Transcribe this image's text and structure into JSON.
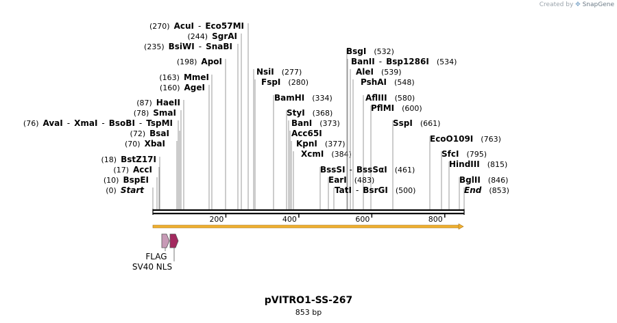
{
  "credit": {
    "prefix": "Created by",
    "brand": "SnapGene"
  },
  "plasmid": {
    "name": "pVITRO1-SS-267",
    "length_label": "853 bp",
    "length_bp": 853
  },
  "axis": {
    "ticks": [
      200,
      400,
      600,
      800
    ],
    "colors": {
      "backbone": "#000000",
      "orf": "#f0b030",
      "orf_stroke": "#a8741a"
    }
  },
  "features": [
    {
      "name": "FLAG",
      "color": "#c79ab6"
    },
    {
      "name": "SV40 NLS",
      "color": "#a3295f"
    }
  ],
  "sites": [
    {
      "key": "AcuI",
      "line": [
        {
          "t": "(270)",
          "s": "paren"
        },
        {
          "t": "AcuI",
          "s": "enz"
        },
        {
          "t": "-",
          "s": "sep"
        },
        {
          "t": "Eco57MI",
          "s": "enz"
        }
      ]
    },
    {
      "key": "SgrAI",
      "line": [
        {
          "t": "(244)",
          "s": "paren"
        },
        {
          "t": "SgrAI",
          "s": "enz"
        }
      ]
    },
    {
      "key": "BsiWI",
      "line": [
        {
          "t": "(235)",
          "s": "paren"
        },
        {
          "t": "BsiWI",
          "s": "enz"
        },
        {
          "t": "-",
          "s": "sep"
        },
        {
          "t": "SnaBI",
          "s": "enz"
        }
      ]
    },
    {
      "key": "ApoI",
      "line": [
        {
          "t": "(198)",
          "s": "paren"
        },
        {
          "t": "ApoI",
          "s": "enz"
        }
      ]
    },
    {
      "key": "MmeI",
      "line": [
        {
          "t": "(163)",
          "s": "paren"
        },
        {
          "t": "MmeI",
          "s": "enz"
        }
      ]
    },
    {
      "key": "AgeI",
      "line": [
        {
          "t": "(160)",
          "s": "paren"
        },
        {
          "t": "AgeI",
          "s": "enz"
        }
      ]
    },
    {
      "key": "HaeII",
      "line": [
        {
          "t": "(87)",
          "s": "paren"
        },
        {
          "t": "HaeII",
          "s": "enz"
        }
      ]
    },
    {
      "key": "SmaI",
      "line": [
        {
          "t": "(78)",
          "s": "paren"
        },
        {
          "t": "SmaI",
          "s": "enz"
        }
      ]
    },
    {
      "key": "AvaI",
      "line": [
        {
          "t": "(76)",
          "s": "paren"
        },
        {
          "t": "AvaI",
          "s": "enz"
        },
        {
          "t": "-",
          "s": "sep"
        },
        {
          "t": "XmaI",
          "s": "enz"
        },
        {
          "t": "-",
          "s": "sep"
        },
        {
          "t": "BsoBI",
          "s": "enz"
        },
        {
          "t": "-",
          "s": "sep"
        },
        {
          "t": "TspMI",
          "s": "enz"
        }
      ]
    },
    {
      "key": "BsaI",
      "line": [
        {
          "t": "(72)",
          "s": "paren"
        },
        {
          "t": "BsaI",
          "s": "enz"
        }
      ]
    },
    {
      "key": "XbaI",
      "line": [
        {
          "t": "(70)",
          "s": "paren"
        },
        {
          "t": "XbaI",
          "s": "enz"
        }
      ]
    },
    {
      "key": "BstZ17I",
      "line": [
        {
          "t": "(18)",
          "s": "paren"
        },
        {
          "t": "BstZ17I",
          "s": "enz"
        }
      ]
    },
    {
      "key": "AccI",
      "line": [
        {
          "t": "(17)",
          "s": "paren"
        },
        {
          "t": "AccI",
          "s": "enz"
        }
      ]
    },
    {
      "key": "BspEI",
      "line": [
        {
          "t": "(10)",
          "s": "paren"
        },
        {
          "t": "BspEI",
          "s": "enz"
        }
      ]
    },
    {
      "key": "Start",
      "line": [
        {
          "t": "(0)",
          "s": "paren"
        },
        {
          "t": "Start",
          "s": "ital"
        }
      ]
    },
    {
      "key": "NsiI",
      "line": [
        {
          "t": "NsiI",
          "s": "enz"
        },
        {
          "t": "(277)",
          "s": "paren"
        }
      ]
    },
    {
      "key": "FspI",
      "line": [
        {
          "t": "FspI",
          "s": "enz"
        },
        {
          "t": "(280)",
          "s": "paren"
        }
      ]
    },
    {
      "key": "BamHI",
      "line": [
        {
          "t": "BamHI",
          "s": "enz"
        },
        {
          "t": "(334)",
          "s": "paren"
        }
      ]
    },
    {
      "key": "StyI",
      "line": [
        {
          "t": "StyI",
          "s": "enz"
        },
        {
          "t": "(368)",
          "s": "paren"
        }
      ]
    },
    {
      "key": "BanI",
      "line": [
        {
          "t": "BanI",
          "s": "enz"
        },
        {
          "t": "(373)",
          "s": "paren"
        }
      ]
    },
    {
      "key": "Acc65I",
      "line": [
        {
          "t": "Acc65I",
          "s": "enz"
        }
      ]
    },
    {
      "key": "KpnI",
      "line": [
        {
          "t": "KpnI",
          "s": "enz"
        },
        {
          "t": "(377)",
          "s": "paren"
        }
      ]
    },
    {
      "key": "XcmI",
      "line": [
        {
          "t": "XcmI",
          "s": "enz"
        },
        {
          "t": "(384)",
          "s": "paren"
        }
      ]
    },
    {
      "key": "BsgI",
      "line": [
        {
          "t": "BsgI",
          "s": "enz"
        },
        {
          "t": "(532)",
          "s": "paren"
        }
      ]
    },
    {
      "key": "BanII",
      "line": [
        {
          "t": "BanII",
          "s": "enz"
        },
        {
          "t": "-",
          "s": "sep"
        },
        {
          "t": "Bsp1286I",
          "s": "enz"
        },
        {
          "t": "(534)",
          "s": "paren"
        }
      ]
    },
    {
      "key": "AleI",
      "line": [
        {
          "t": "AleI",
          "s": "enz"
        },
        {
          "t": "(539)",
          "s": "paren"
        }
      ]
    },
    {
      "key": "PshAI",
      "line": [
        {
          "t": "PshAI",
          "s": "enz"
        },
        {
          "t": "(548)",
          "s": "paren"
        }
      ]
    },
    {
      "key": "AflIII",
      "line": [
        {
          "t": "AflIII",
          "s": "enz"
        },
        {
          "t": "(580)",
          "s": "paren"
        }
      ]
    },
    {
      "key": "PflMI",
      "line": [
        {
          "t": "PflMI",
          "s": "enz"
        },
        {
          "t": "(600)",
          "s": "paren"
        }
      ]
    },
    {
      "key": "SspI",
      "line": [
        {
          "t": "SspI",
          "s": "enz"
        },
        {
          "t": "(661)",
          "s": "paren"
        }
      ]
    },
    {
      "key": "BssSI",
      "line": [
        {
          "t": "BssSI",
          "s": "enz"
        },
        {
          "t": "-",
          "s": "sep"
        },
        {
          "t": "BssSαI",
          "s": "enz"
        },
        {
          "t": "(461)",
          "s": "paren"
        }
      ]
    },
    {
      "key": "EarI",
      "line": [
        {
          "t": "EarI",
          "s": "enz"
        },
        {
          "t": "(483)",
          "s": "paren"
        }
      ]
    },
    {
      "key": "TatI",
      "line": [
        {
          "t": "TatI",
          "s": "enz"
        },
        {
          "t": "-",
          "s": "sep"
        },
        {
          "t": "BsrGI",
          "s": "enz"
        },
        {
          "t": "(500)",
          "s": "paren"
        }
      ]
    },
    {
      "key": "EcoO109I",
      "line": [
        {
          "t": "EcoO109I",
          "s": "enz"
        },
        {
          "t": "(763)",
          "s": "paren"
        }
      ]
    },
    {
      "key": "SfcI",
      "line": [
        {
          "t": "SfcI",
          "s": "enz"
        },
        {
          "t": "(795)",
          "s": "paren"
        }
      ]
    },
    {
      "key": "HindIII",
      "line": [
        {
          "t": "HindIII",
          "s": "enz"
        },
        {
          "t": "(815)",
          "s": "paren"
        }
      ]
    },
    {
      "key": "BglII",
      "line": [
        {
          "t": "BglII",
          "s": "enz"
        },
        {
          "t": "(846)",
          "s": "paren"
        }
      ]
    },
    {
      "key": "End",
      "line": [
        {
          "t": "End",
          "s": "ital"
        },
        {
          "t": "(853)",
          "s": "paren"
        }
      ]
    }
  ]
}
